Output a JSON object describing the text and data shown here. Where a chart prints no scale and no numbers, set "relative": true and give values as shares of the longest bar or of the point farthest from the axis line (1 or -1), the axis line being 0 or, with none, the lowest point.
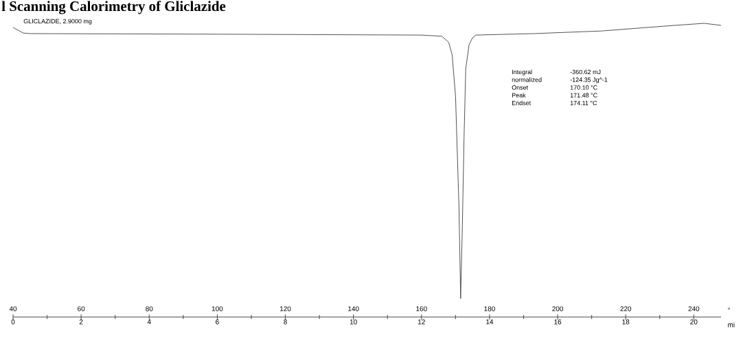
{
  "chart_data": {
    "type": "line",
    "title": "l Scanning Calorimetry of Gliclazide",
    "relative": true,
    "xlabel": "°",
    "x2label": "mi",
    "xlim": [
      40,
      248
    ],
    "xticks": [
      40,
      {
        "value": 50,
        "label": null
      },
      60,
      {
        "value": 70,
        "label": null
      },
      80,
      {
        "value": 90,
        "label": null
      },
      100,
      {
        "value": 110,
        "label": null
      },
      120,
      {
        "value": 130,
        "label": null
      },
      140,
      {
        "value": 150,
        "label": null
      },
      160,
      {
        "value": 170,
        "label": null
      },
      180,
      {
        "value": 190,
        "label": null
      },
      200,
      {
        "value": 210,
        "label": null
      },
      220,
      {
        "value": 230,
        "label": null
      },
      240
    ],
    "x2lim": [
      0,
      20.8
    ],
    "x2ticks": [
      0,
      {
        "value": 1,
        "label": null
      },
      2,
      {
        "value": 3,
        "label": null
      },
      4,
      {
        "value": 5,
        "label": null
      },
      6,
      {
        "value": 7,
        "label": null
      },
      8,
      {
        "value": 9,
        "label": null
      },
      10,
      {
        "value": 11,
        "label": null
      },
      12,
      {
        "value": 13,
        "label": null
      },
      14,
      {
        "value": 15,
        "label": null
      },
      16,
      {
        "value": 17,
        "label": null
      },
      18,
      {
        "value": 19,
        "label": null
      },
      20
    ],
    "annotations": [
      "GLICLAZIDE, 2.9000 mg",
      "Integral",
      "-360.62 mJ",
      "normalized",
      "-124.35 Jg^-1",
      "Onset",
      "170.10 °C",
      "Peak",
      "171.48 °C",
      "Endset",
      "174.11 °C"
    ],
    "series": [
      {
        "color": "#404040",
        "x": [
          40,
          43,
          45,
          100,
          160,
          166,
          168,
          169,
          170,
          171,
          171.5,
          172,
          172.5,
          173,
          174,
          175,
          176,
          193,
          213,
          232,
          243,
          248
        ],
        "values": [
          0.986,
          0.967,
          0.965,
          0.963,
          0.96,
          0.956,
          0.935,
          0.893,
          0.752,
          0.379,
          0.063,
          0.308,
          0.612,
          0.846,
          0.928,
          0.951,
          0.96,
          0.965,
          0.974,
          0.991,
          1.0,
          0.993
        ]
      }
    ]
  }
}
